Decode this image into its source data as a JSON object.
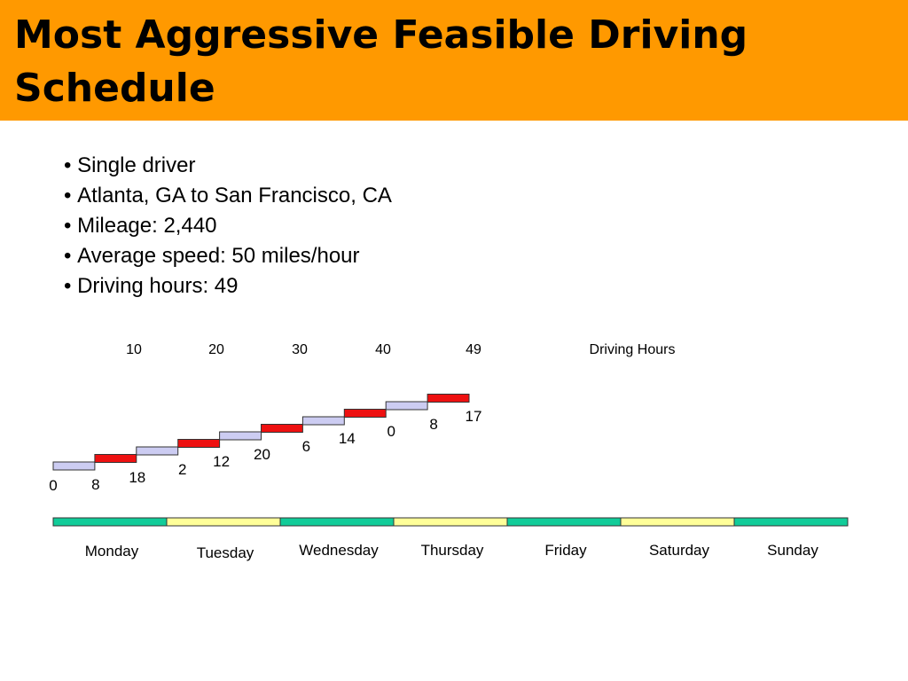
{
  "title": "Most Aggressive Feasible Driving Schedule",
  "bullets": [
    "Single driver",
    "Atlanta, GA to San Francisco, CA",
    "Mileage: 2,440",
    "Average speed: 50 miles/hour",
    "Driving hours: 49"
  ],
  "hour_ticks": [
    "10",
    "20",
    "30",
    "40",
    "49"
  ],
  "hours_label": "Driving Hours",
  "steps": [
    {
      "type": "rest",
      "from_label": "0"
    },
    {
      "type": "drive",
      "from_label": "8"
    },
    {
      "type": "rest",
      "from_label": "18"
    },
    {
      "type": "drive",
      "from_label": "2"
    },
    {
      "type": "rest",
      "from_label": "12"
    },
    {
      "type": "drive",
      "from_label": "20"
    },
    {
      "type": "rest",
      "from_label": "6"
    },
    {
      "type": "drive",
      "from_label": "14"
    },
    {
      "type": "rest",
      "from_label": "0"
    },
    {
      "type": "drive",
      "from_label": "8",
      "to_label": "17"
    }
  ],
  "days": [
    "Monday",
    "Tuesday",
    "Wednesday",
    "Thursday",
    "Friday",
    "Saturday",
    "Sunday"
  ],
  "colors": {
    "title_bg": "#ff9900",
    "drive": "#ee1111",
    "rest": "#ccccf2",
    "day_green": "#11cc99",
    "day_yellow": "#ffff99"
  }
}
